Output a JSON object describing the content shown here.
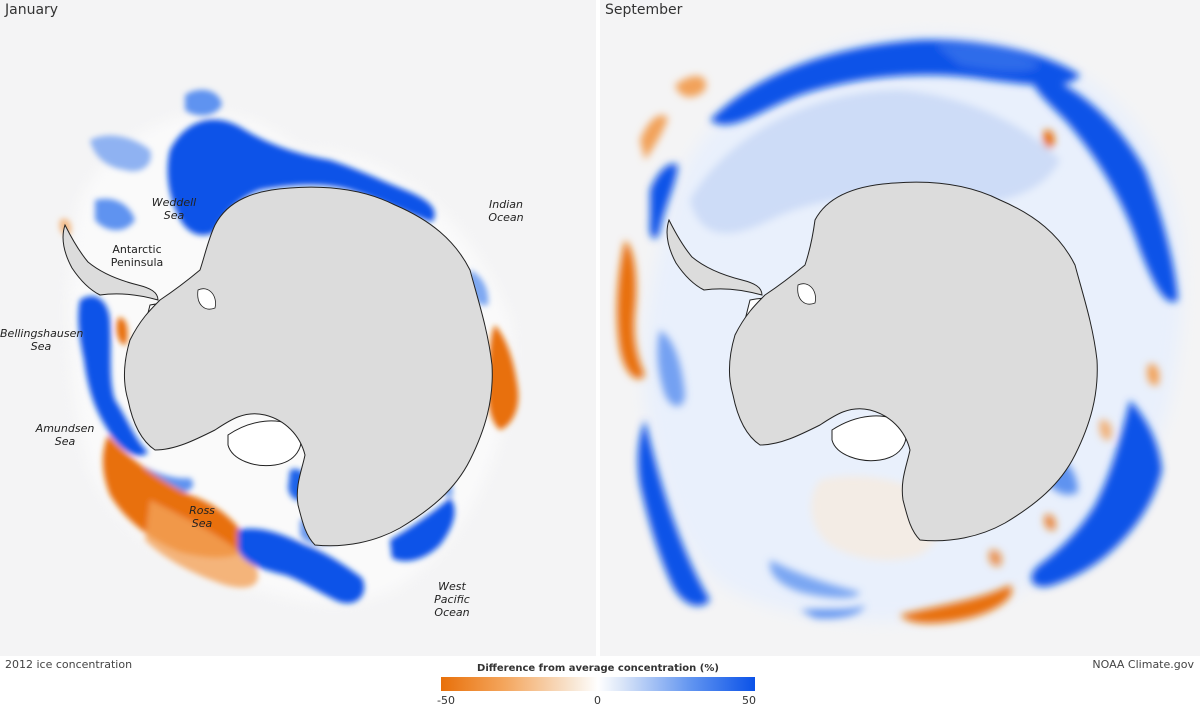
{
  "panels": [
    {
      "title": "January",
      "labels": {
        "weddell": "Weddell\nSea",
        "indian": "Indian\nOcean",
        "peninsula": "Antarctic\nPeninsula",
        "bellingshausen": "Bellingshausen\nSea",
        "amundsen": "Amundsen\nSea",
        "ross": "Ross\nSea",
        "west_pacific": "West\nPacific\nOcean"
      }
    },
    {
      "title": "September"
    }
  ],
  "caption": "2012 ice concentration",
  "credit": "NOAA Climate.gov",
  "legend": {
    "title": "Difference from average concentration (%)",
    "ticks": [
      "-50",
      "0",
      "50"
    ],
    "colors": {
      "negative": "#e8700a",
      "neutral": "#ffffff",
      "positive": "#0b52e8"
    }
  },
  "colors": {
    "land": "#dcdcdc",
    "ice_shelf": "#ffffff",
    "ocean": "#f4f4f5"
  }
}
